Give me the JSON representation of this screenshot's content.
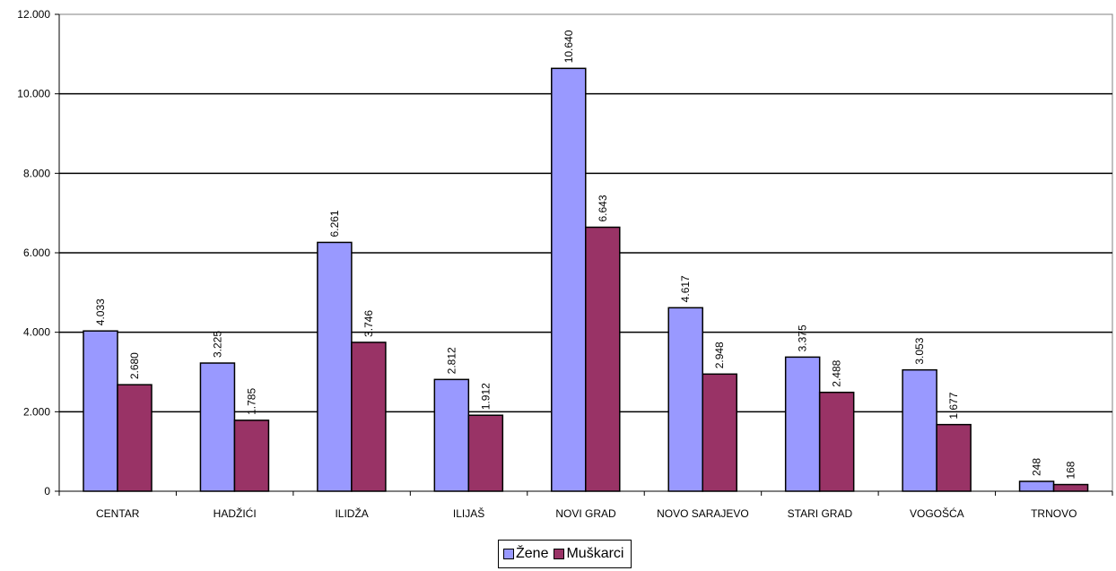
{
  "chart_data": {
    "type": "bar",
    "categories": [
      "CENTAR",
      "HADŽIĆI",
      "ILIDŽA",
      "ILIJAŠ",
      "NOVI GRAD",
      "NOVO SARAJEVO",
      "STARI GRAD",
      "VOGOŠĆA",
      "TRNOVO"
    ],
    "series": [
      {
        "name": "Žene",
        "color": "#9999ff",
        "values": [
          4033,
          3225,
          6261,
          2812,
          10640,
          4617,
          3375,
          3053,
          248
        ],
        "labels": [
          "4.033",
          "3.225",
          "6.261",
          "2.812",
          "10.640",
          "4.617",
          "3.375",
          "3.053",
          "248"
        ]
      },
      {
        "name": "Muškarci",
        "color": "#993366",
        "values": [
          2680,
          1785,
          3746,
          1912,
          6643,
          2948,
          2488,
          1677,
          168
        ],
        "labels": [
          "2.680",
          "1.785",
          "3.746",
          "1.912",
          "6.643",
          "2.948",
          "2.488",
          "1.677",
          "168"
        ]
      }
    ],
    "ylim": [
      0,
      12000
    ],
    "yticks": [
      0,
      2000,
      4000,
      6000,
      8000,
      10000,
      12000
    ],
    "ytick_labels": [
      "0",
      "2.000",
      "4.000",
      "6.000",
      "8.000",
      "10.000",
      "12.000"
    ],
    "grid": true,
    "legend_position": "bottom-center",
    "title": "",
    "xlabel": "",
    "ylabel": ""
  }
}
